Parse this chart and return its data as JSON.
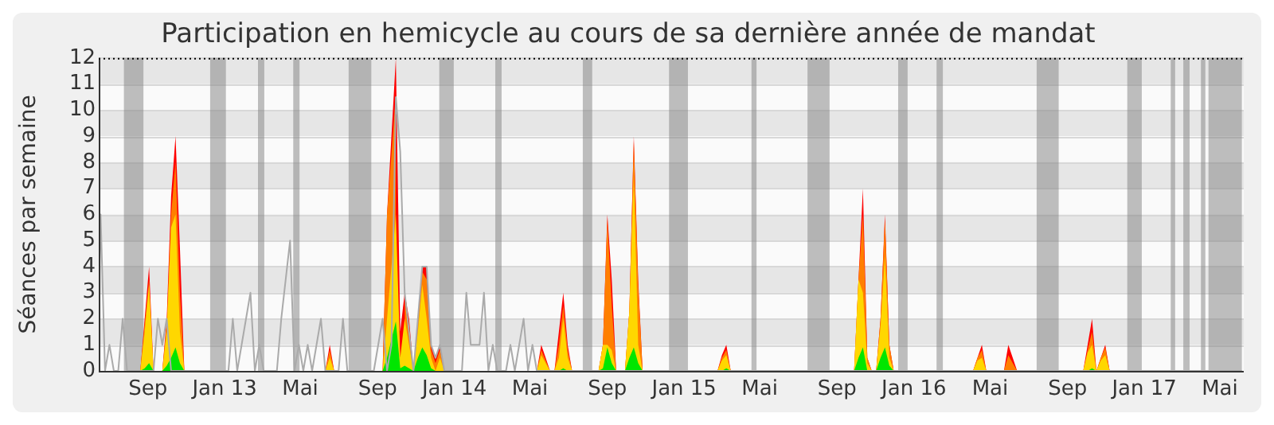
{
  "chart_data": {
    "type": "area",
    "title": "Participation en hemicycle au cours de sa dernière année de mandat",
    "ylabel": "Séances par semaine",
    "xlim": [
      "2012-06-15",
      "2017-06-08"
    ],
    "xticks": [
      {
        "value": "2012-09-01",
        "label": "Sep"
      },
      {
        "value": "2013-01-01",
        "label": "Jan 13"
      },
      {
        "value": "2013-05-01",
        "label": "Mai"
      },
      {
        "value": "2013-09-01",
        "label": "Sep"
      },
      {
        "value": "2014-01-01",
        "label": "Jan 14"
      },
      {
        "value": "2014-05-01",
        "label": "Mai"
      },
      {
        "value": "2014-09-01",
        "label": "Sep"
      },
      {
        "value": "2015-01-01",
        "label": "Jan 15"
      },
      {
        "value": "2015-05-01",
        "label": "Mai"
      },
      {
        "value": "2015-09-01",
        "label": "Sep"
      },
      {
        "value": "2016-01-01",
        "label": "Jan 16"
      },
      {
        "value": "2016-05-01",
        "label": "Mai"
      },
      {
        "value": "2016-09-01",
        "label": "Sep"
      },
      {
        "value": "2017-01-01",
        "label": "Jan 17"
      },
      {
        "value": "2017-05-01",
        "label": "Mai"
      }
    ],
    "ylim": [
      0,
      12
    ],
    "yticks": [
      0,
      1,
      2,
      3,
      4,
      5,
      6,
      7,
      8,
      9,
      10,
      11,
      12
    ],
    "grid": "y",
    "x": [
      "2012-06-18",
      "2012-08-20",
      "2012-08-27",
      "2012-09-03",
      "2012-09-10",
      "2012-09-24",
      "2012-10-01",
      "2012-10-08",
      "2012-10-15",
      "2012-10-22",
      "2012-10-29",
      "2013-06-10",
      "2013-06-17",
      "2013-06-24",
      "2013-09-09",
      "2013-09-16",
      "2013-09-30",
      "2013-10-07",
      "2013-10-14",
      "2013-10-21",
      "2013-10-28",
      "2013-11-04",
      "2013-11-11",
      "2013-11-18",
      "2013-11-25",
      "2013-12-02",
      "2013-12-09",
      "2013-12-16",
      "2014-05-12",
      "2014-05-19",
      "2014-05-26",
      "2014-06-02",
      "2014-06-09",
      "2014-06-16",
      "2014-06-23",
      "2014-06-30",
      "2014-07-07",
      "2014-08-18",
      "2014-08-25",
      "2014-09-01",
      "2014-09-08",
      "2014-09-15",
      "2014-09-29",
      "2014-10-06",
      "2014-10-13",
      "2014-10-20",
      "2014-10-27",
      "2015-02-23",
      "2015-03-02",
      "2015-03-09",
      "2015-03-16",
      "2015-09-28",
      "2015-10-05",
      "2015-10-12",
      "2015-10-19",
      "2015-10-26",
      "2015-11-02",
      "2015-11-09",
      "2015-11-16",
      "2015-11-23",
      "2015-11-30",
      "2016-04-04",
      "2016-04-11",
      "2016-04-18",
      "2016-04-25",
      "2016-05-23",
      "2016-05-30",
      "2016-06-06",
      "2016-06-13",
      "2016-09-26",
      "2016-10-03",
      "2016-10-10",
      "2016-10-17",
      "2016-10-24",
      "2016-10-31",
      "2016-11-07",
      "2017-06-05"
    ],
    "series": [
      {
        "type": "line",
        "color": "#aaaaaa",
        "x": [
          "2012-06-15",
          "2012-06-18",
          "2012-06-25",
          "2012-07-02",
          "2012-07-09",
          "2012-07-16",
          "2012-07-23",
          "2012-07-30",
          "2012-09-10",
          "2012-09-17",
          "2012-09-24",
          "2012-10-01",
          "2012-10-08",
          "2013-01-07",
          "2013-01-14",
          "2013-01-21",
          "2013-01-28",
          "2013-02-04",
          "2013-02-11",
          "2013-02-18",
          "2013-02-25",
          "2013-03-04",
          "2013-03-25",
          "2013-04-01",
          "2013-04-15",
          "2013-04-22",
          "2013-04-29",
          "2013-05-06",
          "2013-05-13",
          "2013-05-20",
          "2013-05-27",
          "2013-06-03",
          "2013-06-10",
          "2013-07-01",
          "2013-07-08",
          "2013-07-15",
          "2013-08-26",
          "2013-09-02",
          "2013-09-09",
          "2013-09-16",
          "2013-09-23",
          "2013-09-30",
          "2013-10-07",
          "2013-10-14",
          "2013-10-21",
          "2013-10-28",
          "2013-11-04",
          "2013-11-11",
          "2013-11-18",
          "2013-11-25",
          "2013-12-02",
          "2013-12-09",
          "2013-12-16",
          "2014-01-13",
          "2014-01-20",
          "2014-01-27",
          "2014-02-03",
          "2014-02-10",
          "2014-02-17",
          "2014-02-24",
          "2014-03-03",
          "2014-03-10",
          "2014-03-24",
          "2014-03-31",
          "2014-04-07",
          "2014-04-14",
          "2014-04-21",
          "2014-04-28",
          "2014-05-05",
          "2014-05-12",
          "2017-06-05"
        ],
        "values": [
          2,
          6,
          0,
          1,
          0,
          0,
          2,
          0,
          0,
          2,
          1,
          2,
          0,
          0,
          2,
          0,
          1,
          2,
          3,
          0,
          1,
          0,
          0,
          2,
          5,
          0,
          1,
          0,
          1,
          0,
          1,
          2,
          0,
          0,
          2,
          0,
          0,
          1,
          2,
          0,
          1,
          10.5,
          8.4,
          3,
          1.5,
          0,
          2,
          4,
          4,
          1,
          0.5,
          1,
          0,
          0,
          3,
          1,
          1,
          1,
          3,
          0,
          1,
          0,
          0,
          1,
          0,
          1,
          2,
          0,
          1,
          0,
          0
        ]
      },
      {
        "type": "area",
        "color": "#ff0000",
        "values": [
          0,
          0,
          2,
          4,
          0,
          0,
          2,
          6.7,
          9,
          4.7,
          0,
          0,
          1,
          0,
          0,
          6,
          12,
          1.5,
          3,
          2,
          0,
          2,
          4,
          4,
          1,
          0.5,
          1,
          0,
          0,
          1,
          0.5,
          0,
          0,
          1.5,
          3,
          1,
          0,
          0,
          1,
          6,
          3.5,
          0,
          0,
          2.3,
          9,
          3.5,
          0,
          0,
          0.6,
          1,
          0,
          0,
          3.5,
          7,
          0.5,
          0,
          0,
          2,
          6,
          1,
          0,
          0,
          0.5,
          1,
          0,
          0,
          1,
          0.5,
          0,
          0,
          1,
          2,
          0,
          0.5,
          1,
          0,
          0
        ]
      },
      {
        "type": "area",
        "color": "#ff7f00",
        "values": [
          0,
          0,
          1.8,
          3.5,
          0,
          0,
          1.8,
          6,
          8,
          3,
          0,
          0,
          0.8,
          0,
          0,
          6,
          10.6,
          null,
          2.7,
          1.5,
          0,
          1.8,
          3.8,
          3.5,
          0.8,
          0.3,
          0.8,
          0,
          0,
          0.8,
          0.4,
          0,
          0,
          1,
          2.5,
          0.8,
          0,
          0,
          1,
          5.8,
          2.5,
          0,
          0,
          2.3,
          8.8,
          3.3,
          0,
          0,
          0.5,
          0.8,
          0,
          0,
          3.5,
          6,
          0.5,
          0,
          0,
          2,
          5.8,
          1,
          0,
          0,
          0.5,
          0.8,
          0,
          0,
          0.6,
          0.3,
          0,
          0,
          0.8,
          1.5,
          0,
          0.5,
          0.9,
          0,
          0
        ]
      },
      {
        "type": "area",
        "color": "#ffd700",
        "values": [
          0,
          0,
          1.5,
          3.3,
          0,
          0,
          1.5,
          5.5,
          6,
          1.5,
          0,
          0,
          0.5,
          0,
          0,
          2,
          6,
          0.5,
          2,
          1,
          0,
          1.5,
          3.3,
          2,
          0.5,
          0,
          0.5,
          0,
          0,
          0.6,
          0.3,
          0,
          0,
          0.5,
          2,
          0.5,
          0,
          0,
          1,
          1,
          0.8,
          0,
          0,
          2.3,
          7.5,
          1,
          0,
          0,
          0.4,
          0.6,
          0,
          0,
          3.5,
          3,
          0.3,
          0,
          0,
          1.7,
          4.4,
          0.5,
          0,
          0,
          0.4,
          0.5,
          0,
          0,
          0,
          0,
          0,
          0,
          0.7,
          1,
          0,
          0.4,
          0.6,
          0,
          0
        ]
      },
      {
        "type": "area",
        "color": "#00e600",
        "values": [
          0,
          0,
          0.1,
          0.3,
          0,
          0,
          0.2,
          0.5,
          0.9,
          0.3,
          0,
          0,
          0,
          0,
          0,
          0.5,
          1.9,
          0.1,
          0.2,
          0.1,
          0,
          0.5,
          0.9,
          0.6,
          0.1,
          0,
          0,
          0,
          0,
          0,
          0,
          0,
          0,
          0,
          0.1,
          0,
          0,
          0,
          0.1,
          0.9,
          0.3,
          0,
          0,
          0.5,
          0.9,
          0.3,
          0,
          0,
          0,
          0.1,
          0,
          0,
          0.5,
          0.9,
          0,
          0,
          0,
          0.5,
          0.9,
          0.2,
          0,
          0,
          0,
          0,
          0,
          0,
          0,
          0,
          0,
          0,
          0,
          0.1,
          0,
          0,
          0,
          0,
          0
        ]
      }
    ],
    "bands": [
      {
        "axis": "x",
        "from": "2012-07-25",
        "to": "2012-08-25",
        "color": "#808080"
      },
      {
        "axis": "x",
        "from": "2012-12-09",
        "to": "2013-01-03",
        "color": "#808080"
      },
      {
        "axis": "x",
        "from": "2013-02-23",
        "to": "2013-03-05",
        "color": "#808080"
      },
      {
        "axis": "x",
        "from": "2013-04-20",
        "to": "2013-04-30",
        "color": "#808080"
      },
      {
        "axis": "x",
        "from": "2013-07-17",
        "to": "2013-08-22",
        "color": "#808080"
      },
      {
        "axis": "x",
        "from": "2013-12-08",
        "to": "2013-12-31",
        "color": "#808080"
      },
      {
        "axis": "x",
        "from": "2014-03-07",
        "to": "2014-03-17",
        "color": "#808080"
      },
      {
        "axis": "x",
        "from": "2014-07-24",
        "to": "2014-08-08",
        "color": "#808080"
      },
      {
        "axis": "x",
        "from": "2014-12-08",
        "to": "2015-01-07",
        "color": "#808080"
      },
      {
        "axis": "x",
        "from": "2015-04-18",
        "to": "2015-04-26",
        "color": "#808080"
      },
      {
        "axis": "x",
        "from": "2015-07-16",
        "to": "2015-08-20",
        "color": "#808080"
      },
      {
        "axis": "x",
        "from": "2015-12-07",
        "to": "2015-12-22",
        "color": "#808080"
      },
      {
        "axis": "x",
        "from": "2016-02-06",
        "to": "2016-02-16",
        "color": "#808080"
      },
      {
        "axis": "x",
        "from": "2016-07-14",
        "to": "2016-08-18",
        "color": "#808080"
      },
      {
        "axis": "x",
        "from": "2016-12-05",
        "to": "2016-12-28",
        "color": "#808080"
      },
      {
        "axis": "x",
        "from": "2017-02-12",
        "to": "2017-02-19",
        "color": "#808080"
      },
      {
        "axis": "x",
        "from": "2017-03-04",
        "to": "2017-03-14",
        "color": "#808080"
      },
      {
        "axis": "x",
        "from": "2017-04-01",
        "to": "2017-04-08",
        "color": "#808080"
      },
      {
        "axis": "x",
        "from": "2017-04-13",
        "to": "2017-06-05",
        "color": "#808080"
      }
    ]
  }
}
